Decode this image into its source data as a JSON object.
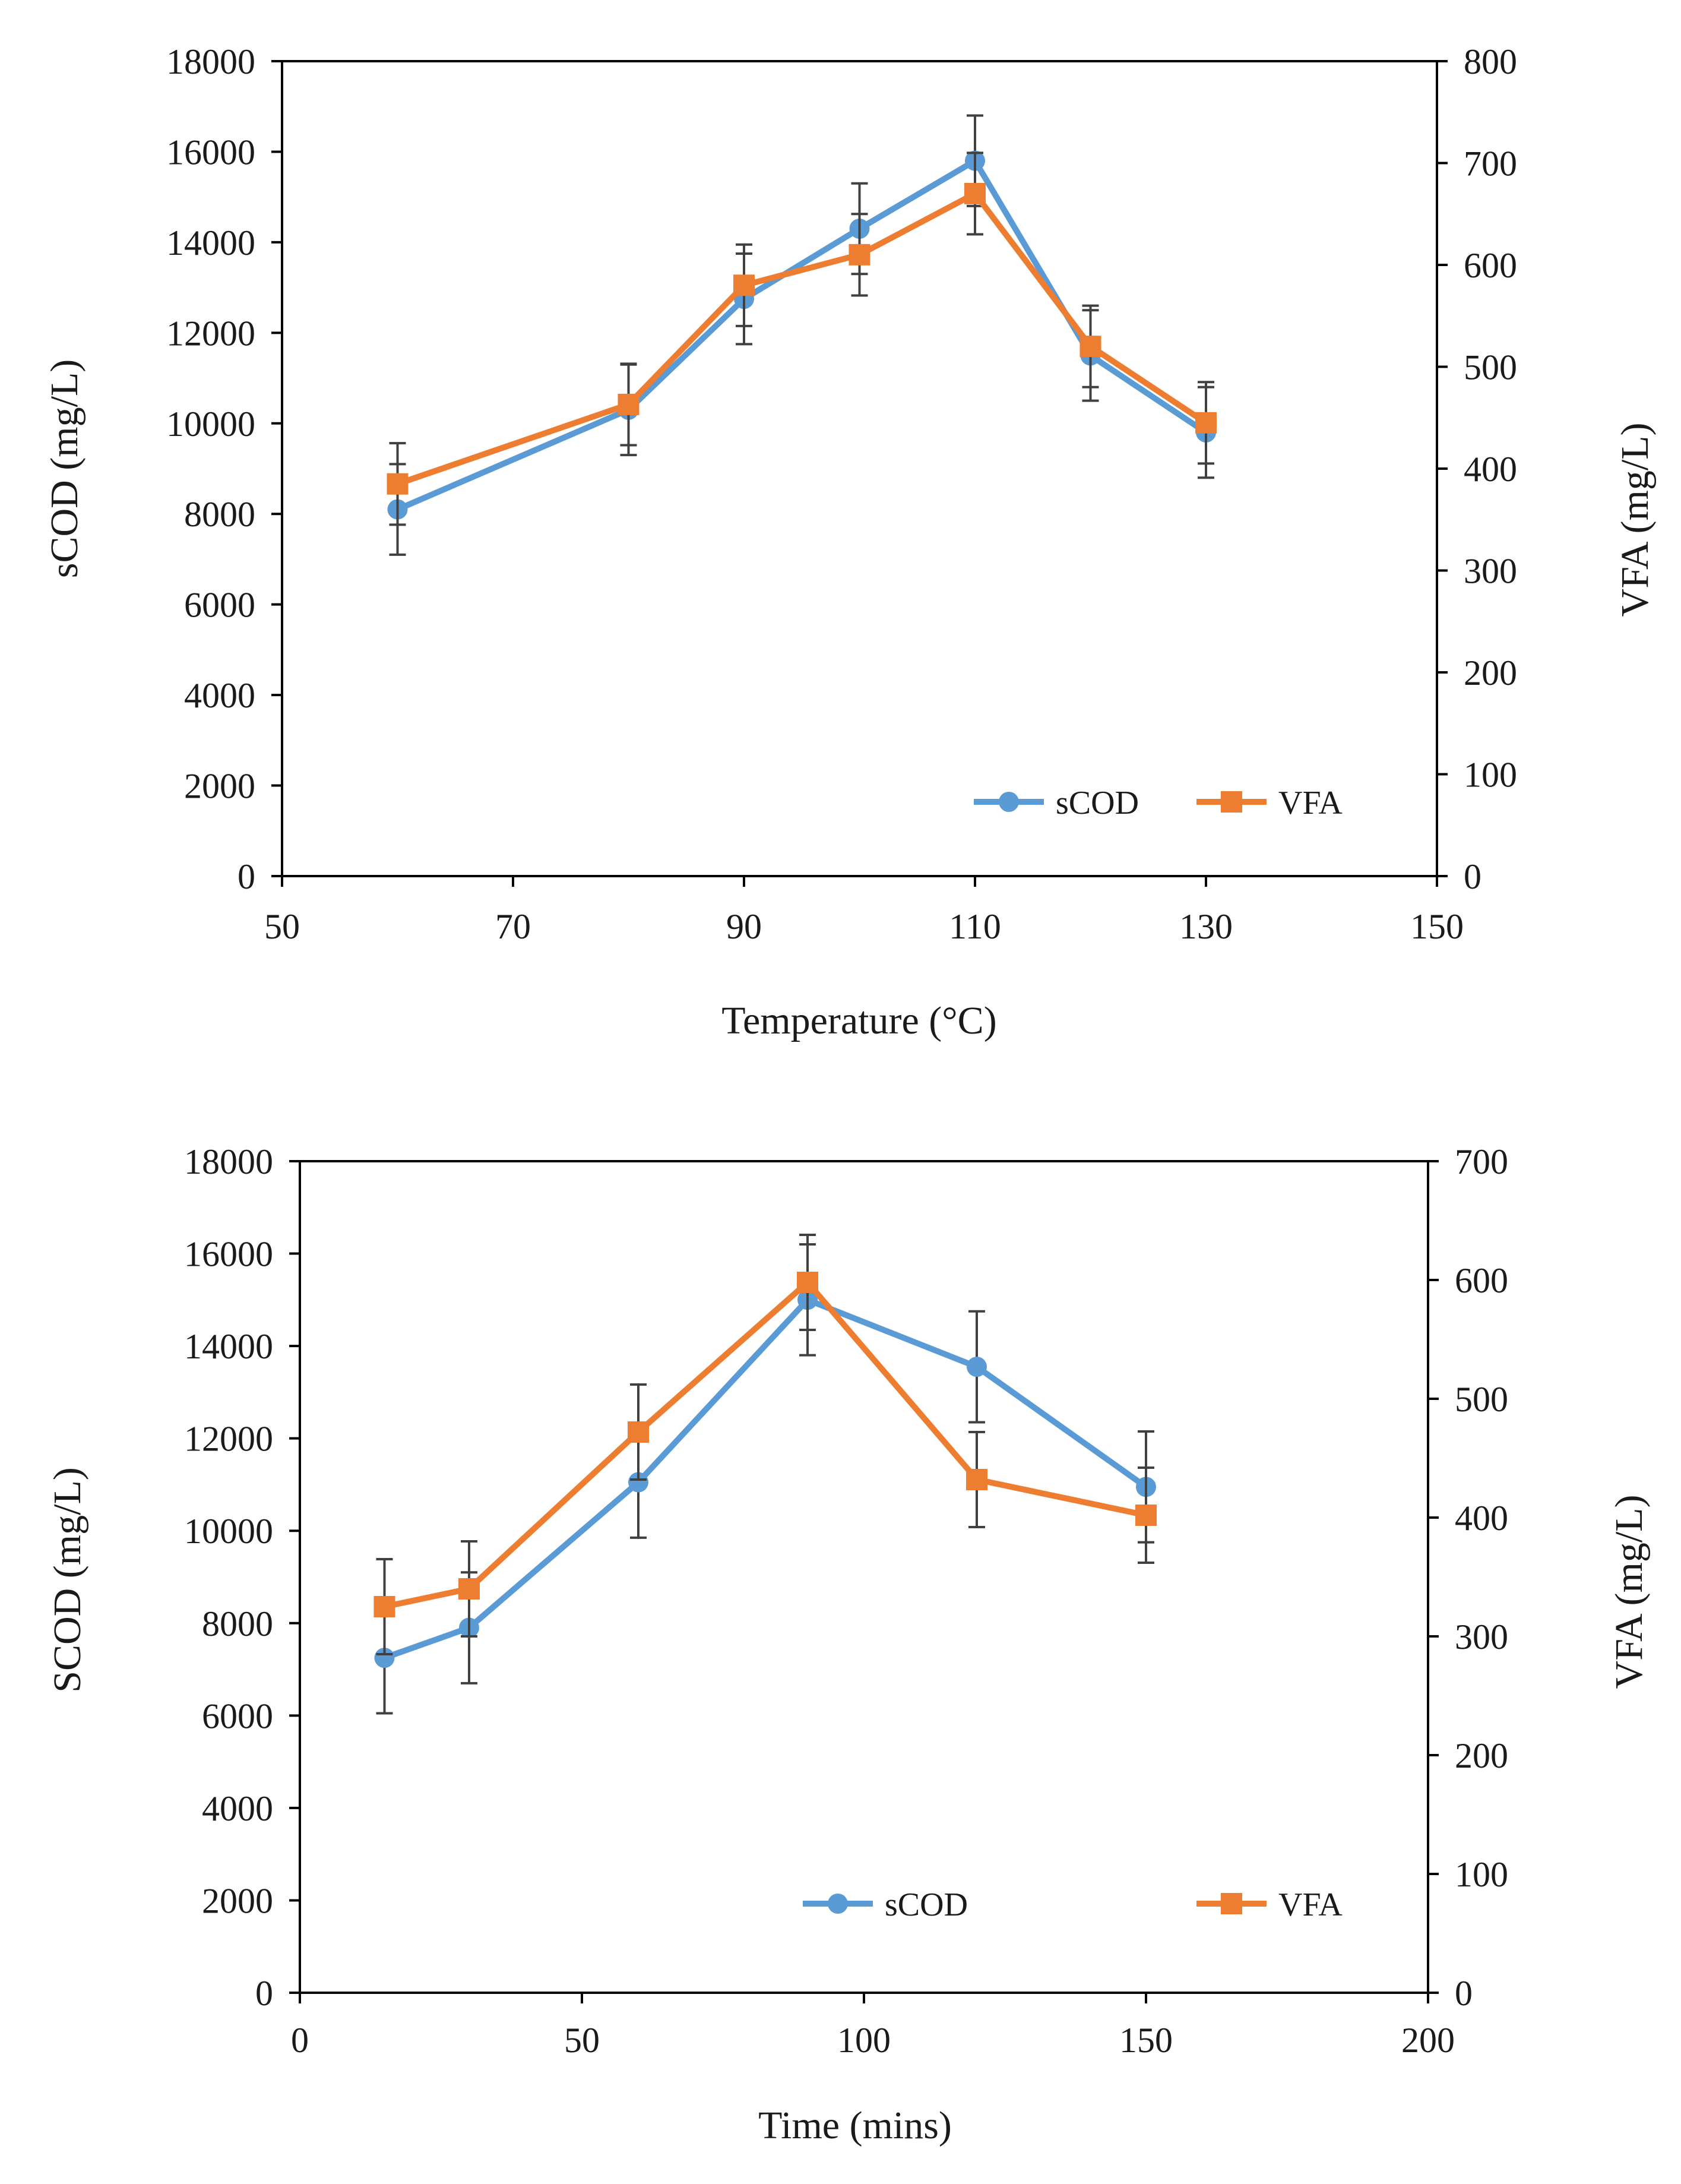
{
  "colors": {
    "scod": "#5B9BD5",
    "vfa": "#ED7D31",
    "axis": "#000000",
    "errorbar": "#404040"
  },
  "chart_data": [
    {
      "type": "line",
      "xlabel": "Temperature (°C)",
      "ylabel": "sCOD (mg/L)",
      "y2label": "VFA (mg/L)",
      "xlim": [
        50,
        150
      ],
      "ylim": [
        0,
        18000
      ],
      "y2lim": [
        0,
        800
      ],
      "xticks": [
        "50",
        "70",
        "90",
        "110",
        "130",
        "150"
      ],
      "yticks": [
        "0",
        "2000",
        "4000",
        "6000",
        "8000",
        "10000",
        "12000",
        "14000",
        "16000",
        "18000"
      ],
      "y2ticks": [
        "0",
        "100",
        "200",
        "300",
        "400",
        "500",
        "600",
        "700",
        "800"
      ],
      "grid": false,
      "legend_position": "bottom-right",
      "x": [
        60,
        80,
        90,
        100,
        110,
        120,
        130
      ],
      "series": [
        {
          "name": "sCOD",
          "axis": "left",
          "marker": "circle",
          "values": [
            8100,
            10300,
            12750,
            14300,
            15800,
            11500,
            9800
          ],
          "error": [
            1000,
            1000,
            1000,
            1000,
            1000,
            1000,
            1000
          ]
        },
        {
          "name": "VFA",
          "axis": "right",
          "marker": "square",
          "values": [
            385,
            463,
            580,
            610,
            670,
            520,
            445
          ],
          "error": [
            40,
            40,
            40,
            40,
            40,
            40,
            40
          ]
        }
      ]
    },
    {
      "type": "line",
      "xlabel": "Time (mins)",
      "ylabel": "SCOD (mg/L)",
      "y2label": "VFA (mg/L)",
      "xlim": [
        0,
        200
      ],
      "ylim": [
        0,
        18000
      ],
      "y2lim": [
        0,
        700
      ],
      "xticks": [
        "0",
        "50",
        "100",
        "150",
        "200"
      ],
      "yticks": [
        "0",
        "2000",
        "4000",
        "6000",
        "8000",
        "10000",
        "12000",
        "14000",
        "16000",
        "18000"
      ],
      "y2ticks": [
        "0",
        "100",
        "200",
        "300",
        "400",
        "500",
        "600",
        "700"
      ],
      "grid": false,
      "legend_position": "bottom",
      "x": [
        15,
        30,
        60,
        90,
        120,
        150
      ],
      "series": [
        {
          "name": "sCOD",
          "axis": "left",
          "marker": "circle",
          "values": [
            7250,
            7900,
            11050,
            15000,
            13550,
            10950
          ],
          "error": [
            1200,
            1200,
            1200,
            1200,
            1200,
            1200
          ]
        },
        {
          "name": "VFA",
          "axis": "right",
          "marker": "square",
          "values": [
            325,
            340,
            472,
            598,
            432,
            402
          ],
          "error": [
            40,
            40,
            40,
            40,
            40,
            40
          ]
        }
      ]
    }
  ]
}
